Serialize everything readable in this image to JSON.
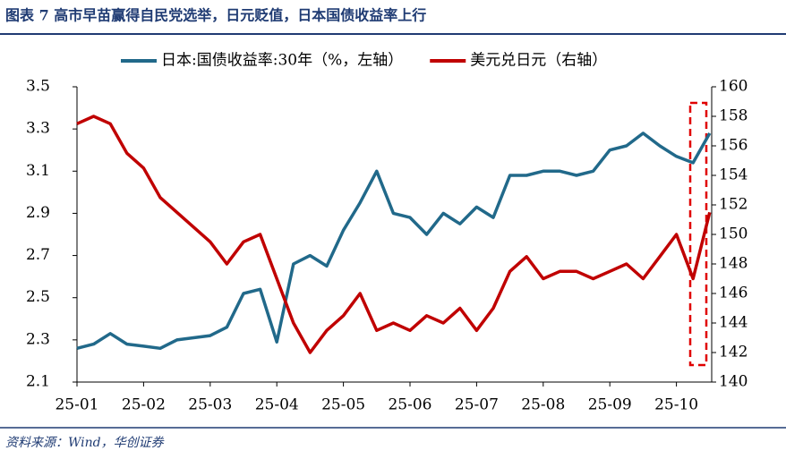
{
  "chart_data": {
    "type": "line",
    "title": "图表 7   高市早苗赢得自民党选举，日元贬值，日本国债收益率上行",
    "source": "资料来源：Wind，华创证券",
    "categories": [
      "25-01",
      null,
      null,
      null,
      "25-02",
      null,
      null,
      null,
      "25-03",
      null,
      null,
      null,
      "25-04",
      null,
      null,
      null,
      "25-05",
      null,
      null,
      null,
      "25-06",
      null,
      null,
      null,
      "25-07",
      null,
      null,
      null,
      "25-08",
      null,
      null,
      null,
      "25-09",
      null,
      null,
      null,
      "25-10",
      null,
      null
    ],
    "series": [
      {
        "name": "日本:国债收益率:30年（%，左轴）",
        "color": "#21698a",
        "values": [
          2.26,
          2.28,
          2.33,
          2.28,
          2.27,
          2.26,
          2.3,
          2.31,
          2.32,
          2.36,
          2.52,
          2.54,
          2.29,
          2.66,
          2.7,
          2.65,
          2.82,
          2.95,
          3.1,
          2.9,
          2.88,
          2.8,
          2.9,
          2.85,
          2.93,
          2.88,
          3.08,
          3.08,
          3.1,
          3.1,
          3.08,
          3.1,
          3.2,
          3.22,
          3.28,
          3.22,
          3.17,
          3.14,
          3.28
        ]
      },
      {
        "name": "美元兑日元（右轴）",
        "color": "#c00000",
        "axis": "y2",
        "values": [
          157.5,
          158,
          157.5,
          155.5,
          154.5,
          152.5,
          151.5,
          150.5,
          149.5,
          148,
          149.5,
          150,
          147,
          144,
          142,
          143.5,
          144.5,
          146,
          143.5,
          144,
          143.5,
          144.5,
          144,
          145,
          143.5,
          145,
          147.5,
          148.5,
          147,
          147.5,
          147.5,
          147,
          147.5,
          148,
          147,
          148.5,
          150,
          147,
          151.5
        ]
      }
    ],
    "ylim": [
      2.1,
      3.5
    ],
    "yticks": [
      2.1,
      2.3,
      2.5,
      2.7,
      2.9,
      3.1,
      3.3,
      3.5
    ],
    "y2lim": [
      140,
      160
    ],
    "y2ticks": [
      140,
      142,
      144,
      146,
      148,
      150,
      152,
      154,
      156,
      158,
      160
    ],
    "legend": "top"
  }
}
